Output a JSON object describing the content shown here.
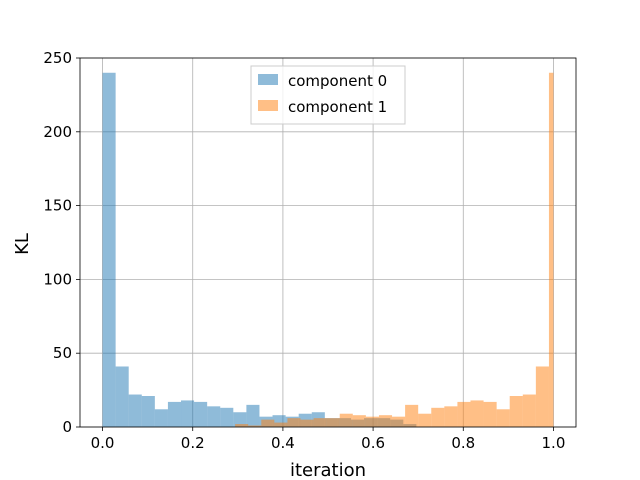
{
  "chart_data": {
    "type": "bar",
    "title": "",
    "xlabel": "iteration",
    "ylabel": "KL",
    "xlim": [
      -0.05,
      1.05
    ],
    "ylim": [
      0,
      250
    ],
    "grid": true,
    "legend_position": "top-center",
    "x_ticks": [
      0.0,
      0.2,
      0.4,
      0.6,
      0.8,
      1.0
    ],
    "x_tick_labels": [
      "0.0",
      "0.2",
      "0.4",
      "0.6",
      "0.8",
      "1.0"
    ],
    "y_ticks": [
      0,
      50,
      100,
      150,
      200,
      250
    ],
    "y_tick_labels": [
      "0",
      "50",
      "100",
      "150",
      "200",
      "250"
    ],
    "series": [
      {
        "name": "component 0",
        "color": "#1f77b4",
        "opacity": 0.5,
        "bins": [
          [
            0.0,
            0.029,
            240
          ],
          [
            0.029,
            0.058,
            41
          ],
          [
            0.058,
            0.087,
            22
          ],
          [
            0.087,
            0.116,
            21
          ],
          [
            0.116,
            0.145,
            12
          ],
          [
            0.145,
            0.174,
            17
          ],
          [
            0.174,
            0.203,
            18
          ],
          [
            0.203,
            0.232,
            17
          ],
          [
            0.232,
            0.261,
            14
          ],
          [
            0.261,
            0.29,
            13
          ],
          [
            0.29,
            0.319,
            10
          ],
          [
            0.319,
            0.348,
            15
          ],
          [
            0.348,
            0.377,
            7
          ],
          [
            0.377,
            0.406,
            8
          ],
          [
            0.406,
            0.435,
            7
          ],
          [
            0.435,
            0.464,
            9
          ],
          [
            0.464,
            0.493,
            10
          ],
          [
            0.493,
            0.522,
            6
          ],
          [
            0.522,
            0.551,
            6
          ],
          [
            0.551,
            0.58,
            5
          ],
          [
            0.58,
            0.609,
            6
          ],
          [
            0.609,
            0.638,
            6
          ],
          [
            0.638,
            0.667,
            5
          ],
          [
            0.667,
            0.696,
            2
          ]
        ]
      },
      {
        "name": "component 1",
        "color": "#ff7f0e",
        "opacity": 0.5,
        "bins": [
          [
            0.294,
            0.323,
            2
          ],
          [
            0.323,
            0.352,
            1
          ],
          [
            0.352,
            0.381,
            5
          ],
          [
            0.381,
            0.41,
            3
          ],
          [
            0.41,
            0.439,
            6
          ],
          [
            0.439,
            0.468,
            5
          ],
          [
            0.468,
            0.497,
            6
          ],
          [
            0.497,
            0.526,
            6
          ],
          [
            0.526,
            0.555,
            9
          ],
          [
            0.555,
            0.584,
            8
          ],
          [
            0.584,
            0.613,
            7
          ],
          [
            0.613,
            0.642,
            8
          ],
          [
            0.642,
            0.671,
            7
          ],
          [
            0.671,
            0.7,
            15
          ],
          [
            0.7,
            0.729,
            9
          ],
          [
            0.729,
            0.758,
            13
          ],
          [
            0.758,
            0.787,
            14
          ],
          [
            0.787,
            0.816,
            17
          ],
          [
            0.816,
            0.845,
            18
          ],
          [
            0.845,
            0.874,
            17
          ],
          [
            0.874,
            0.903,
            12
          ],
          [
            0.903,
            0.932,
            21
          ],
          [
            0.932,
            0.961,
            22
          ],
          [
            0.961,
            0.99,
            41
          ],
          [
            0.99,
            1.0,
            240
          ]
        ]
      }
    ]
  }
}
